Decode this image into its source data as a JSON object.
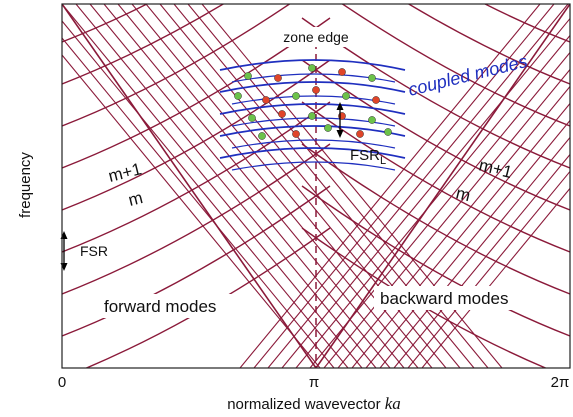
{
  "labels": {
    "zone_edge": "zone edge",
    "coupled_modes": "coupled modes",
    "fsr_l_main": "FSR",
    "fsr_l_sub": "L",
    "m_plus_1": "m+1",
    "m": "m",
    "fsr": "FSR",
    "forward_modes": "forward modes",
    "backward_modes": "backward modes",
    "y_axis": "frequency",
    "x_axis_main": "normalized wavevector ",
    "x_axis_var": "ka",
    "tick_0": "0",
    "tick_pi": "π",
    "tick_2pi": "2π"
  },
  "colors": {
    "dispersion": "#8b1a3a",
    "coupled": "#1f2fbf",
    "node_red": "#e0452a",
    "node_green": "#6cc24a",
    "zone_edge_line": "#8b1a3a",
    "coupled_label": "#1f2fbf"
  },
  "counts": {
    "mode_families": 9,
    "coupled_bands": 5
  }
}
